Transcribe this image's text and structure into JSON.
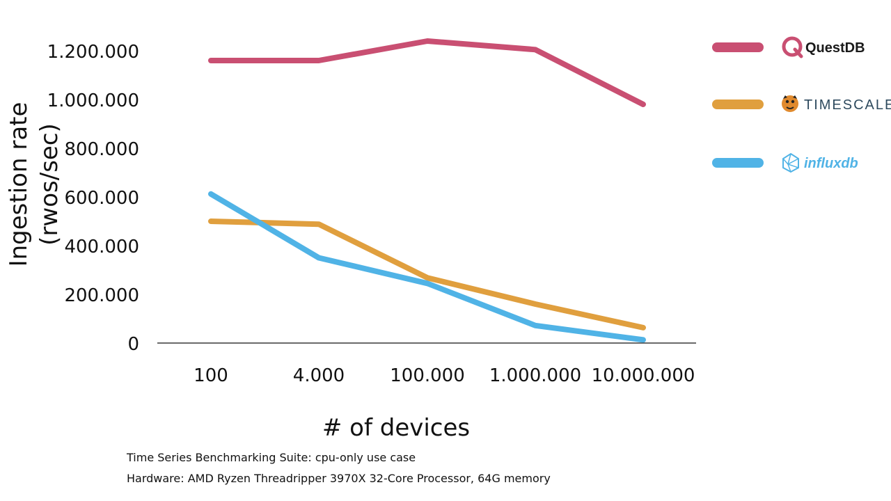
{
  "chart_data": {
    "type": "line",
    "categories": [
      "100",
      "4.000",
      "100.000",
      "1.000.000",
      "10.000.000"
    ],
    "ylim": [
      0,
      1200000
    ],
    "yticks": [
      "0",
      "200.000",
      "400.000",
      "600.000",
      "800.000",
      "1.000.000",
      "1.200.000"
    ],
    "ytick_values": [
      0,
      200000,
      400000,
      600000,
      800000,
      1000000,
      1200000
    ],
    "ylabel_line1": "Ingestion rate",
    "ylabel_line2": "(rwos/sec)",
    "xlabel": "# of devices",
    "legend_position": "top-right",
    "series": [
      {
        "name": "QuestDB",
        "color": "#c94f72",
        "icon": "questdb-logo-icon",
        "values": [
          1160000,
          1160000,
          1240000,
          1205000,
          980000
        ]
      },
      {
        "name": "TIMESCALE",
        "color": "#e09f3e",
        "icon": "timescale-tiger-logo-icon",
        "values": [
          500000,
          488000,
          268000,
          160000,
          63000
        ]
      },
      {
        "name": "influxdb",
        "color": "#50b3e6",
        "icon": "influxdb-logo-icon",
        "values": [
          612000,
          350000,
          245000,
          72000,
          13000
        ]
      }
    ]
  },
  "footnotes": [
    "Time Series Benchmarking Suite: cpu-only use case",
    "Hardware: AMD Ryzen Threadripper 3970X 32-Core Processor, 64G memory"
  ]
}
